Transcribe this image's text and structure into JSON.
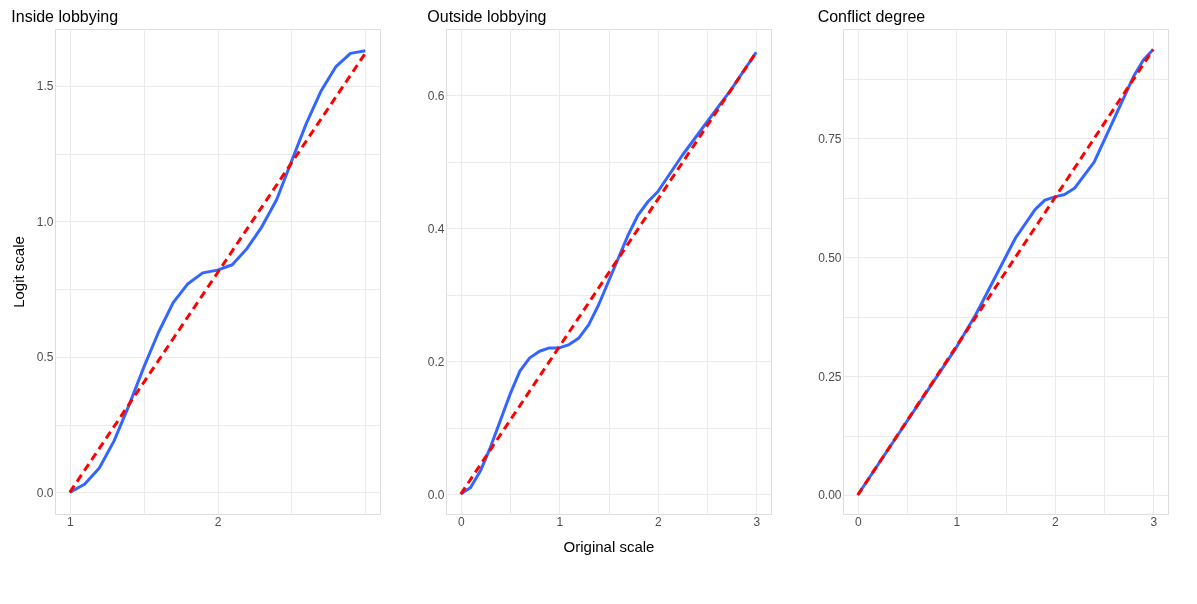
{
  "chart_data": [
    {
      "type": "line",
      "title": "Inside lobbying",
      "ylabel": "Logit scale",
      "grid": true,
      "line_style": "solid",
      "xlim": [
        0.9,
        3.1
      ],
      "xticks": [
        1,
        {
          "value": 1.5,
          "label": null
        },
        2,
        {
          "value": 2.5,
          "label": null
        },
        {
          "value": 3,
          "label": null
        }
      ],
      "ylim": [
        -0.08,
        1.71
      ],
      "yticks": [
        {
          "value": 0,
          "label": "0.0"
        },
        {
          "value": 0.25,
          "label": null
        },
        0.5,
        {
          "value": 0.75,
          "label": null
        },
        {
          "value": 1,
          "label": "1.0"
        },
        {
          "value": 1.25,
          "label": null
        },
        1.5
      ],
      "series": [
        {
          "color": "#3366ff",
          "x": [
            1,
            1.1,
            1.2,
            1.3,
            1.4,
            1.5,
            1.6,
            1.7,
            1.8,
            1.9,
            2,
            2.1,
            2.2,
            2.3,
            2.4,
            2.5,
            2.6,
            2.7,
            2.8,
            2.9,
            3
          ],
          "values": [
            0,
            0.03,
            0.09,
            0.19,
            0.32,
            0.46,
            0.59,
            0.7,
            0.77,
            0.81,
            0.82,
            0.84,
            0.9,
            0.98,
            1.08,
            1.22,
            1.36,
            1.48,
            1.57,
            1.62,
            1.63
          ]
        },
        {
          "color": "#ff0000",
          "line_style": "dashed",
          "x": [
            1,
            3
          ],
          "values": [
            0,
            1.62
          ]
        }
      ]
    },
    {
      "type": "line",
      "title": "Outside lobbying",
      "xlabel": "Original scale",
      "grid": true,
      "line_style": "solid",
      "xlim": [
        -0.15,
        3.15
      ],
      "xticks": [
        0,
        {
          "value": 0.5,
          "label": null
        },
        1,
        {
          "value": 1.5,
          "label": null
        },
        2,
        {
          "value": 2.5,
          "label": null
        },
        3
      ],
      "ylim": [
        -0.03,
        0.7
      ],
      "yticks": [
        {
          "value": 0,
          "label": "0.0"
        },
        {
          "value": 0.1,
          "label": null
        },
        0.2,
        {
          "value": 0.3,
          "label": null
        },
        0.4,
        {
          "value": 0.5,
          "label": null
        },
        0.6
      ],
      "series": [
        {
          "color": "#3366ff",
          "x": [
            0,
            0.1,
            0.2,
            0.3,
            0.4,
            0.5,
            0.6,
            0.7,
            0.8,
            0.9,
            1,
            1.1,
            1.2,
            1.3,
            1.4,
            1.5,
            1.6,
            1.7,
            1.8,
            1.9,
            2,
            2.25,
            2.5,
            2.75,
            3
          ],
          "values": [
            0,
            0.01,
            0.035,
            0.07,
            0.11,
            0.15,
            0.185,
            0.205,
            0.215,
            0.22,
            0.22,
            0.225,
            0.235,
            0.255,
            0.285,
            0.32,
            0.355,
            0.39,
            0.42,
            0.44,
            0.455,
            0.51,
            0.56,
            0.61,
            0.665
          ]
        },
        {
          "color": "#ff0000",
          "line_style": "dashed",
          "x": [
            0,
            3
          ],
          "values": [
            0,
            0.665
          ]
        }
      ]
    },
    {
      "type": "line",
      "title": "Conflict degree",
      "grid": true,
      "line_style": "solid",
      "xlim": [
        -0.15,
        3.15
      ],
      "xticks": [
        0,
        {
          "value": 0.5,
          "label": null
        },
        1,
        {
          "value": 1.5,
          "label": null
        },
        2,
        {
          "value": 2.5,
          "label": null
        },
        3
      ],
      "ylim": [
        -0.04,
        0.98
      ],
      "yticks": [
        {
          "value": 0,
          "label": "0.00"
        },
        {
          "value": 0.125,
          "label": null
        },
        0.25,
        {
          "value": 0.375,
          "label": null
        },
        {
          "value": 0.5,
          "label": "0.50"
        },
        {
          "value": 0.625,
          "label": null
        },
        0.75,
        {
          "value": 0.875,
          "label": null
        }
      ],
      "series": [
        {
          "color": "#3366ff",
          "x": [
            0,
            0.5,
            1,
            1.2,
            1.4,
            1.6,
            1.8,
            1.9,
            2,
            2.1,
            2.2,
            2.4,
            2.6,
            2.8,
            2.9,
            3
          ],
          "values": [
            0,
            0.155,
            0.31,
            0.38,
            0.46,
            0.54,
            0.6,
            0.62,
            0.627,
            0.632,
            0.645,
            0.7,
            0.79,
            0.88,
            0.915,
            0.937
          ]
        },
        {
          "color": "#ff0000",
          "line_style": "dashed",
          "x": [
            0,
            3
          ],
          "values": [
            0,
            0.937
          ]
        }
      ]
    }
  ]
}
